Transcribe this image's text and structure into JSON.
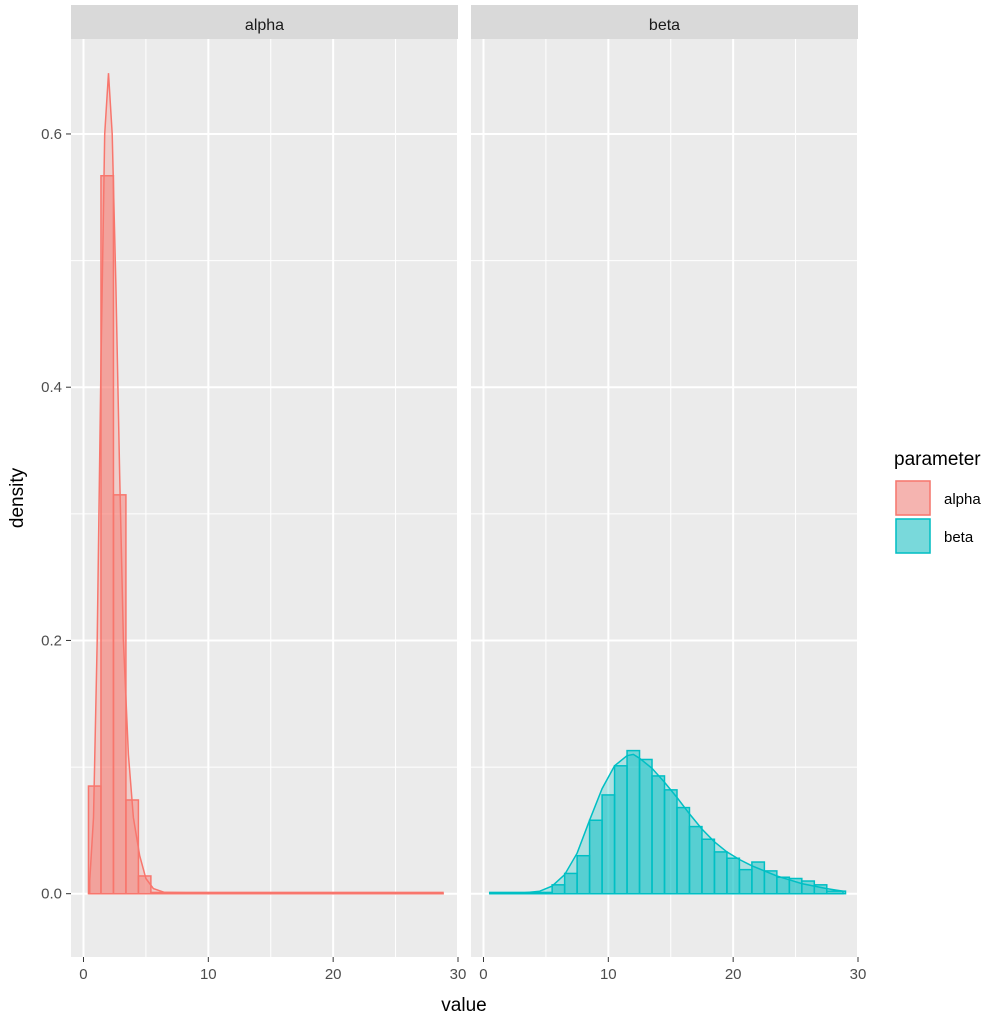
{
  "chart_data": {
    "type": "histogram-density-faceted",
    "xlabel": "value",
    "ylabel": "density",
    "x_range": [
      -1,
      30
    ],
    "y_range": [
      -0.05,
      0.675
    ],
    "x_ticks": [
      0,
      10,
      20,
      30
    ],
    "x_tick_labels": [
      "0",
      "10",
      "20",
      "30"
    ],
    "y_ticks": [
      0.0,
      0.2,
      0.4,
      0.6
    ],
    "y_tick_labels": [
      "0.0",
      "0.2",
      "0.4",
      "0.6"
    ],
    "grid": true,
    "legend": {
      "title": "parameter",
      "position": "right",
      "entries": [
        "alpha",
        "beta"
      ]
    },
    "facets": [
      {
        "strip": "alpha",
        "color": "#F8766D",
        "bin_width": 1,
        "bins": [
          {
            "x0": 0.4,
            "x1": 1.4,
            "density": 0.085
          },
          {
            "x0": 1.4,
            "x1": 2.4,
            "density": 0.567
          },
          {
            "x0": 2.4,
            "x1": 3.4,
            "density": 0.315
          },
          {
            "x0": 3.4,
            "x1": 4.4,
            "density": 0.074
          },
          {
            "x0": 4.4,
            "x1": 5.4,
            "density": 0.014
          },
          {
            "x0": 5.4,
            "x1": 28.8,
            "density": 0.001
          }
        ],
        "density_curve": {
          "x": [
            0.5,
            0.8,
            1.1,
            1.4,
            1.7,
            2.0,
            2.3,
            2.6,
            2.9,
            3.2,
            3.6,
            4.0,
            4.5,
            5.0,
            5.6,
            6.5,
            10,
            15,
            20,
            25,
            28.8
          ],
          "y": [
            0.01,
            0.06,
            0.2,
            0.42,
            0.6,
            0.648,
            0.6,
            0.48,
            0.33,
            0.2,
            0.11,
            0.06,
            0.03,
            0.012,
            0.004,
            0.001,
            0.0005,
            0.0003,
            0.0002,
            0.0001,
            0.0001
          ]
        }
      },
      {
        "strip": "beta",
        "color": "#00BFC4",
        "bin_width": 1,
        "bins": [
          {
            "x0": 0.5,
            "x1": 5.5,
            "density": 0.001
          },
          {
            "x0": 5.5,
            "x1": 6.5,
            "density": 0.007
          },
          {
            "x0": 6.5,
            "x1": 7.5,
            "density": 0.016
          },
          {
            "x0": 7.5,
            "x1": 8.5,
            "density": 0.03
          },
          {
            "x0": 8.5,
            "x1": 9.5,
            "density": 0.058
          },
          {
            "x0": 9.5,
            "x1": 10.5,
            "density": 0.078
          },
          {
            "x0": 10.5,
            "x1": 11.5,
            "density": 0.101
          },
          {
            "x0": 11.5,
            "x1": 12.5,
            "density": 0.113
          },
          {
            "x0": 12.5,
            "x1": 13.5,
            "density": 0.106
          },
          {
            "x0": 13.5,
            "x1": 14.5,
            "density": 0.093
          },
          {
            "x0": 14.5,
            "x1": 15.5,
            "density": 0.082
          },
          {
            "x0": 15.5,
            "x1": 16.5,
            "density": 0.068
          },
          {
            "x0": 16.5,
            "x1": 17.5,
            "density": 0.053
          },
          {
            "x0": 17.5,
            "x1": 18.5,
            "density": 0.043
          },
          {
            "x0": 18.5,
            "x1": 19.5,
            "density": 0.033
          },
          {
            "x0": 19.5,
            "x1": 20.5,
            "density": 0.028
          },
          {
            "x0": 20.5,
            "x1": 21.5,
            "density": 0.019
          },
          {
            "x0": 21.5,
            "x1": 22.5,
            "density": 0.025
          },
          {
            "x0": 22.5,
            "x1": 23.5,
            "density": 0.018
          },
          {
            "x0": 23.5,
            "x1": 24.5,
            "density": 0.013
          },
          {
            "x0": 24.5,
            "x1": 25.5,
            "density": 0.012
          },
          {
            "x0": 25.5,
            "x1": 26.5,
            "density": 0.01
          },
          {
            "x0": 26.5,
            "x1": 27.5,
            "density": 0.007
          },
          {
            "x0": 27.5,
            "x1": 29.0,
            "density": 0.002
          }
        ],
        "density_curve": {
          "x": [
            0.5,
            3,
            4.5,
            5.5,
            6.5,
            7.5,
            8.5,
            9.5,
            10.5,
            11.5,
            12.0,
            12.5,
            13.5,
            14.5,
            15.5,
            16.5,
            17.5,
            18.5,
            19.5,
            20.5,
            21.5,
            22.5,
            23.5,
            24.5,
            25.5,
            26.5,
            27.5,
            28.8
          ],
          "y": [
            0.0,
            0.0005,
            0.002,
            0.006,
            0.015,
            0.032,
            0.058,
            0.083,
            0.101,
            0.109,
            0.11,
            0.107,
            0.099,
            0.088,
            0.076,
            0.063,
            0.051,
            0.041,
            0.033,
            0.027,
            0.022,
            0.018,
            0.014,
            0.011,
            0.008,
            0.006,
            0.004,
            0.002
          ]
        }
      }
    ]
  }
}
